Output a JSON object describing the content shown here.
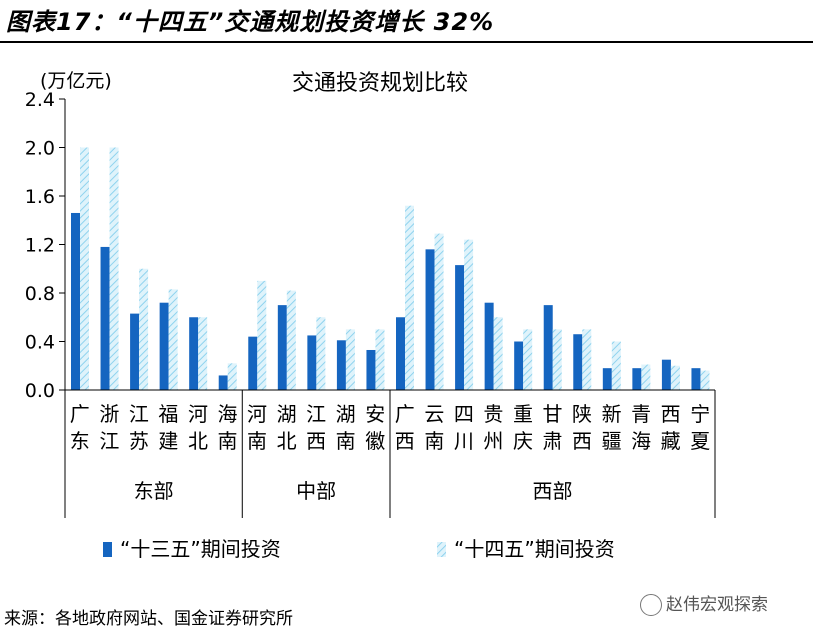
{
  "figure": {
    "title": "图表17：“十四五”交通规划投资增长 32%",
    "source": "来源：各地政府网站、国金证券研究所",
    "watermark": "赵伟宏观探索"
  },
  "colors": {
    "series1": "#1565c0",
    "series2_fill": "#dff3fb",
    "series2_hatch": "#8fd3ee"
  },
  "chart_data": {
    "type": "bar",
    "title": "交通投资规划比较",
    "ylabel": "(万亿元)",
    "ylim": [
      0,
      2.4
    ],
    "yticks": [
      "0.0",
      "0.4",
      "0.8",
      "1.2",
      "1.6",
      "2.0",
      "2.4"
    ],
    "grid": false,
    "legend_position": "bottom",
    "categories": [
      "广东",
      "浙江",
      "江苏",
      "福建",
      "河北",
      "海南",
      "河南",
      "湖北",
      "江西",
      "湖南",
      "安徽",
      "广西",
      "云南",
      "四川",
      "贵州",
      "重庆",
      "甘肃",
      "陕西",
      "新疆",
      "青海",
      "西藏",
      "宁夏"
    ],
    "groups": [
      {
        "name": "东部",
        "start": 0,
        "end": 5
      },
      {
        "name": "中部",
        "start": 6,
        "end": 10
      },
      {
        "name": "西部",
        "start": 11,
        "end": 21
      }
    ],
    "series": [
      {
        "name": "“十三五”期间投资",
        "values": [
          1.46,
          1.18,
          0.63,
          0.72,
          0.6,
          0.12,
          0.44,
          0.7,
          0.45,
          0.41,
          0.33,
          0.6,
          1.16,
          1.03,
          0.72,
          0.4,
          0.7,
          0.46,
          0.18,
          0.18,
          0.25,
          0.18
        ]
      },
      {
        "name": "“十四五”期间投资",
        "values": [
          2.0,
          2.0,
          1.0,
          0.83,
          0.6,
          0.22,
          0.9,
          0.82,
          0.6,
          0.5,
          0.5,
          1.52,
          1.29,
          1.24,
          0.6,
          0.5,
          0.5,
          0.5,
          0.4,
          0.21,
          0.2,
          0.16
        ]
      }
    ]
  }
}
